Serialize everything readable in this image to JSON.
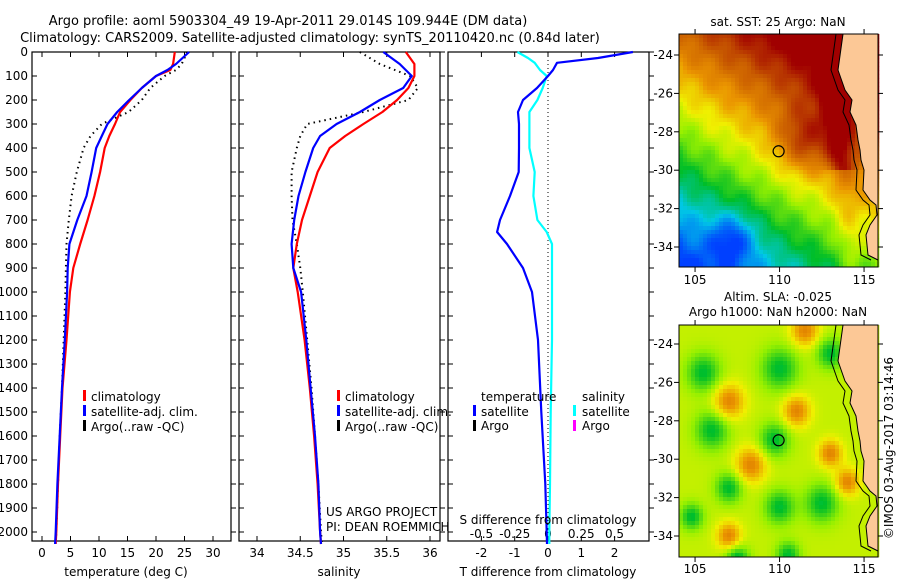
{
  "header": {
    "title_line1": "Argo profile: aoml 5903304_49 19-Apr-2011 29.014S 109.944E (DM data)",
    "title_line2": "Climatology: CARS2009. Satellite-adjusted climatology: synTS_20110420.nc (0.84d later)"
  },
  "colors": {
    "climatology": "#ff0000",
    "satellite": "#0000ff",
    "argo": "#000000",
    "salinity_satellite": "#00ffff",
    "salinity_argo": "#ff00ff",
    "land": "#fcc896"
  },
  "chart_data": [
    {
      "type": "line",
      "name": "temperature-profile",
      "xlabel": "temperature (deg C)",
      "ylabel": "depth",
      "xlim": [
        -1.8,
        33
      ],
      "ylim": [
        2037,
        0
      ],
      "xticks": [
        0,
        5,
        10,
        15,
        20,
        25,
        30
      ],
      "yticks": [
        0,
        100,
        200,
        300,
        400,
        500,
        600,
        700,
        800,
        900,
        1000,
        1100,
        1200,
        1300,
        1400,
        1500,
        1600,
        1700,
        1800,
        1900,
        2000
      ],
      "depth": [
        0,
        50,
        75,
        100,
        150,
        200,
        250,
        300,
        350,
        400,
        500,
        600,
        700,
        800,
        900,
        1000,
        1200,
        1400,
        1600,
        1800,
        2000,
        2050
      ],
      "series": [
        {
          "name": "climatology",
          "values": [
            23.3,
            23,
            22.5,
            20,
            17.5,
            15.5,
            13.7,
            12.8,
            11.8,
            11,
            10.2,
            9.2,
            8,
            6.7,
            5.5,
            4.9,
            4.3,
            3.6,
            3.2,
            2.8,
            2.5,
            2.4
          ]
        },
        {
          "name": "satellite-adj. clim.",
          "values": [
            25.8,
            23.5,
            22,
            20,
            17.5,
            15.3,
            13.2,
            11.5,
            10.5,
            9.5,
            8.7,
            7.8,
            6.2,
            4.8,
            4.5,
            4.4,
            4,
            3.5,
            3.1,
            2.7,
            2.4,
            2.3
          ]
        },
        {
          "name": "Argo(..raw -QC)",
          "values": [
            25.5,
            24.5,
            23.5,
            21.5,
            19,
            17.5,
            15.2,
            10.5,
            8.5,
            7.3,
            6.1,
            5.2,
            4.7,
            4.3,
            4.2,
            4.1,
            3.8,
            3.5,
            3.1,
            2.8,
            2.5,
            2.4
          ]
        }
      ],
      "legend": [
        "climatology",
        "satellite-adj. clim.",
        "Argo(..raw -QC)"
      ]
    },
    {
      "type": "line",
      "name": "salinity-profile",
      "xlabel": "salinity",
      "xlim": [
        33.79,
        36.12
      ],
      "ylim": [
        2037,
        0
      ],
      "xticks": [
        "34",
        "34.5",
        "35",
        "35.5",
        "36"
      ],
      "depth": [
        0,
        50,
        100,
        150,
        200,
        250,
        300,
        350,
        400,
        500,
        600,
        700,
        800,
        900,
        1000,
        1200,
        1400,
        1600,
        1800,
        2000,
        2050
      ],
      "series": [
        {
          "name": "climatology",
          "values": [
            35.72,
            35.82,
            35.82,
            35.75,
            35.62,
            35.45,
            35.23,
            35.02,
            34.84,
            34.7,
            34.61,
            34.52,
            34.46,
            34.42,
            34.47,
            34.55,
            34.61,
            34.66,
            34.7,
            34.73,
            34.74
          ]
        },
        {
          "name": "satellite-adj. clim.",
          "values": [
            35.46,
            35.65,
            35.79,
            35.69,
            35.42,
            35.19,
            34.92,
            34.73,
            34.65,
            34.56,
            34.48,
            34.43,
            34.4,
            34.42,
            34.51,
            34.57,
            34.62,
            34.67,
            34.71,
            34.73,
            34.74
          ]
        },
        {
          "name": "Argo(..raw -QC)",
          "values": [
            35.19,
            35.42,
            35.77,
            35.86,
            35.75,
            35.23,
            34.58,
            34.5,
            34.46,
            34.4,
            34.4,
            34.41,
            34.46,
            34.5,
            34.53,
            34.58,
            34.63,
            34.67,
            34.71,
            34.74,
            34.75
          ]
        }
      ],
      "legend": [
        "climatology",
        "satellite-adj. clim.",
        "Argo(..raw -QC)"
      ],
      "credit_line1": "US ARGO PROJECT",
      "credit_line2": "PI: DEAN ROEMMICH"
    },
    {
      "type": "line",
      "name": "difference-profile",
      "xlabel": "T difference from climatology",
      "x2label": "S difference from climatology",
      "xlim": [
        -3,
        3.05
      ],
      "x2lim": [
        -0.75,
        0.76
      ],
      "ylim": [
        2037,
        0
      ],
      "xticks": [
        "-2",
        "-1",
        "0",
        "1",
        "2"
      ],
      "x2ticks": [
        "-0.5",
        "-0.25",
        "0",
        "0.25",
        "0.5"
      ],
      "depth": [
        0,
        25,
        45,
        75,
        100,
        150,
        200,
        250,
        300,
        400,
        500,
        600,
        700,
        750,
        800,
        900,
        1000,
        1200,
        1500,
        1800,
        2000,
        2050
      ],
      "series": [
        {
          "name": "temperature satellite",
          "values": [
            2.55,
            1.5,
            0.27,
            0.15,
            0,
            -0.33,
            -0.75,
            -0.9,
            -0.87,
            -0.87,
            -0.88,
            -1.14,
            -1.44,
            -1.53,
            -1.23,
            -0.75,
            -0.48,
            -0.3,
            -0.2,
            -0.08,
            -0.04,
            -0.03
          ]
        },
        {
          "name": "salinity satellite",
          "values": [
            -0.23,
            -0.15,
            -0.1,
            -0.06,
            -0.01,
            -0.04,
            -0.08,
            -0.14,
            -0.14,
            -0.14,
            -0.1,
            -0.11,
            -0.08,
            -0.01,
            0.03,
            0.03,
            0.03,
            0.03,
            0.02,
            0.015,
            0.01,
            0.01
          ]
        }
      ],
      "legend": {
        "temperature_heading": "temperature",
        "salinity_heading": "salinity",
        "t_satellite": "satellite",
        "t_argo": "Argo",
        "s_satellite": "satellite",
        "s_argo": "Argo"
      }
    }
  ],
  "maps": [
    {
      "name": "sst-map",
      "title": "sat. SST: 25 Argo: NaN",
      "lat_ticks": [
        "-24",
        "-26",
        "-28",
        "-30",
        "-32",
        "-34"
      ],
      "lon_ticks": [
        "105",
        "110",
        "115"
      ],
      "argo_position": {
        "lon": 109.944,
        "lat": -29.014
      }
    },
    {
      "name": "sla-map",
      "title_line1": "Altim. SLA: -0.025",
      "title_line2": "Argo h1000: NaN h2000: NaN",
      "lat_ticks": [
        "-24",
        "-26",
        "-28",
        "-30",
        "-32",
        "-34"
      ],
      "lon_ticks": [
        "105",
        "110",
        "115"
      ],
      "argo_position": {
        "lon": 109.944,
        "lat": -29.014
      }
    }
  ],
  "copyright": "©IMOS 03-Aug-2017 03:14:46"
}
